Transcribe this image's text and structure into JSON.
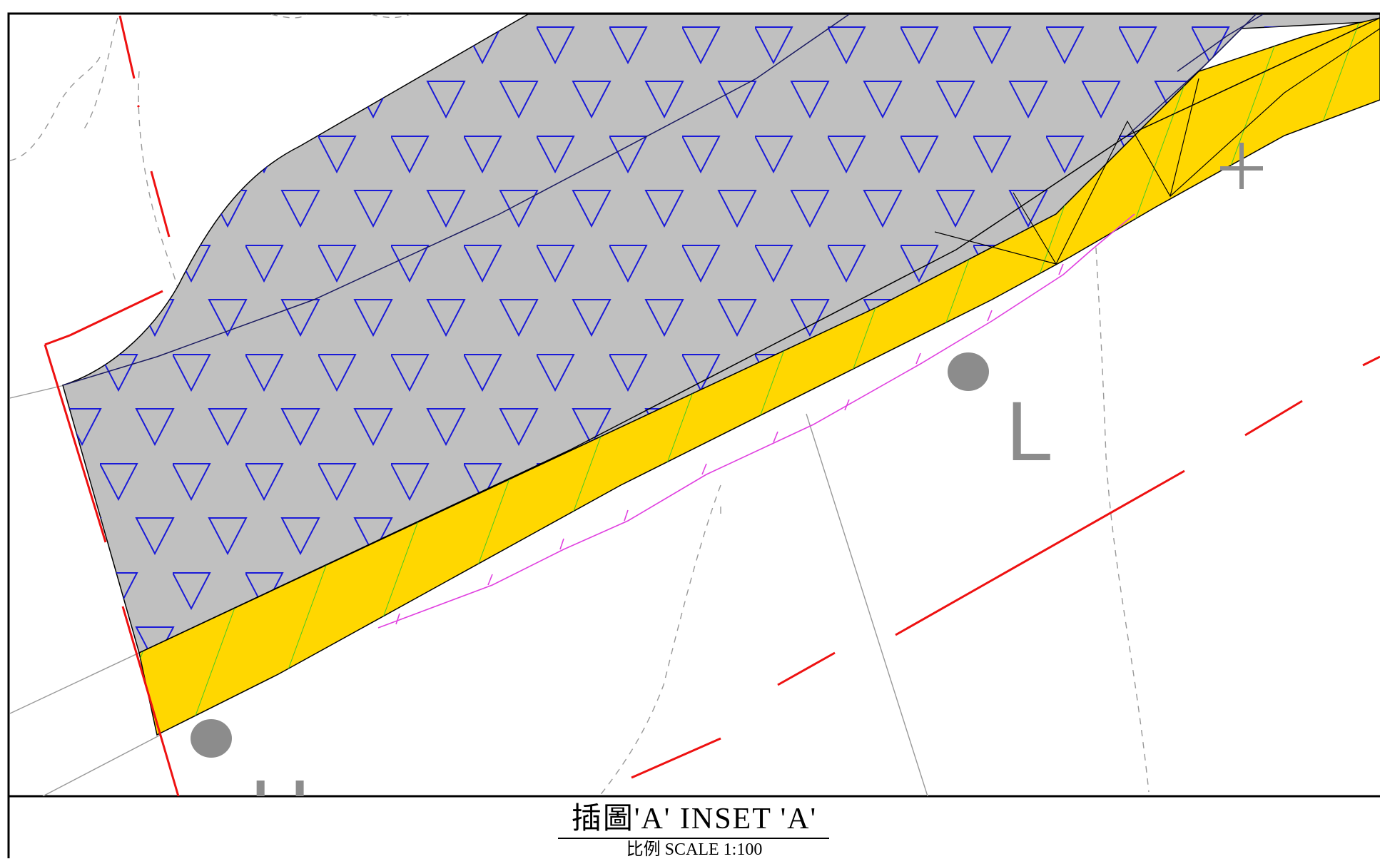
{
  "drawing": {
    "inset_title": "插圖'A' INSET 'A'",
    "scale_text": "比例 SCALE 1:100"
  },
  "map_labels": {
    "label_L": "L",
    "label_H": "H"
  },
  "colors": {
    "frame": "#000000",
    "grey_fill": "#c0c0c0",
    "triangle_stroke": "#1a1ad8",
    "yellow_fill": "#ffd700",
    "hatch_green": "#44cc22",
    "red_line": "#ee1111",
    "magenta_line": "#e040e0",
    "grey_line": "#999999",
    "marker_grey": "#8c8c8c"
  }
}
